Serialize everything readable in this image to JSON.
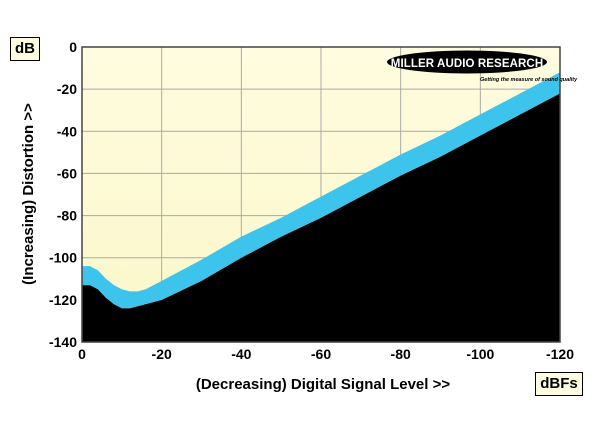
{
  "chart_data": {
    "type": "line",
    "title": "",
    "xlabel": "(Decreasing) Digital Signal Level >>",
    "ylabel": "(Increasing) Distortion >>",
    "x_unit": "dBFs",
    "y_unit": "dB",
    "xlim": [
      0,
      -120
    ],
    "ylim": [
      -140,
      0
    ],
    "x_ticks": [
      0,
      -20,
      -40,
      -60,
      -80,
      -100,
      -120
    ],
    "y_ticks": [
      0,
      -20,
      -40,
      -60,
      -80,
      -100,
      -120,
      -140
    ],
    "grid": true,
    "logo": {
      "name": "MILLER AUDIO RESEARCH",
      "tagline": "Getting the measure of sound quality"
    },
    "series": [
      {
        "color": "#3cc4ec",
        "style": "band",
        "x": [
          0,
          -2,
          -4,
          -6,
          -8,
          -10,
          -12,
          -14,
          -16,
          -20,
          -30,
          -40,
          -50,
          -60,
          -70,
          -80,
          -90,
          -100,
          -110,
          -120
        ],
        "upper": [
          -104,
          -104,
          -106,
          -110,
          -113,
          -115,
          -116,
          -116,
          -115,
          -111,
          -101,
          -90,
          -81,
          -71,
          -61,
          -51,
          -42,
          -32,
          -22,
          -12
        ],
        "lower": [
          -113,
          -113,
          -115,
          -119,
          -122,
          -124,
          -124,
          -123,
          -122,
          -120,
          -111,
          -100,
          -90,
          -81,
          -71,
          -61,
          -52,
          -42,
          -32,
          -22
        ]
      }
    ]
  }
}
